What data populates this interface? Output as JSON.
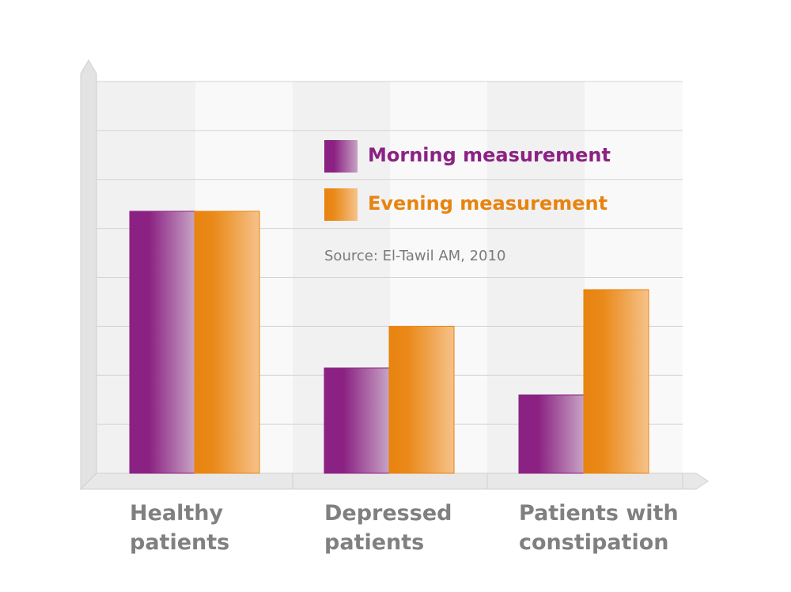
{
  "chart_data": {
    "type": "bar",
    "categories": [
      [
        "Healthy",
        "patients"
      ],
      [
        "Depressed",
        "patients"
      ],
      [
        "Patients with",
        "constipation"
      ]
    ],
    "series": [
      {
        "name": "Morning measurement",
        "values": [
          5.35,
          2.15,
          1.6
        ]
      },
      {
        "name": "Evening measurement",
        "values": [
          5.35,
          3.0,
          3.75
        ]
      }
    ],
    "ylim": [
      0,
      8
    ],
    "grid": true,
    "legend_position": "top-center",
    "annotation": "Source: El-Tawil AM, 2010",
    "colors": {
      "morning": "#8b2283",
      "morning_light": "#c7a3c4",
      "evening": "#e8830f",
      "evening_light": "#f6c28a",
      "grid": "#d3d3d3",
      "axis": "#e6e6e6",
      "label": "#808080"
    }
  }
}
